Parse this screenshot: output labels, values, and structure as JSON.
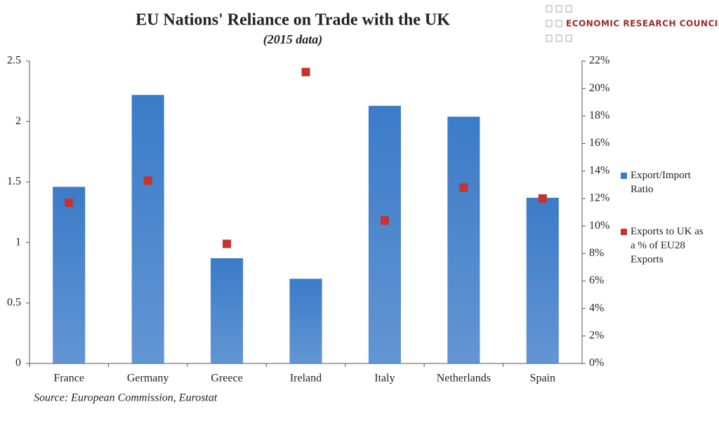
{
  "logo": "ECONOMIC RESEARCH COUNCIL",
  "chart_data": {
    "type": "bar",
    "title": "EU Nations' Reliance on Trade with the UK",
    "subtitle": "(2015 data)",
    "source": "Source: European Commission, Eurostat",
    "categories": [
      "France",
      "Germany",
      "Greece",
      "Ireland",
      "Italy",
      "Netherlands",
      "Spain"
    ],
    "series": [
      {
        "name": "Export/Import Ratio",
        "color": "#3b7bc8",
        "values": [
          1.46,
          2.22,
          0.87,
          0.7,
          2.13,
          2.04,
          1.37
        ]
      },
      {
        "name": "Exports to UK as a % of EU28 Exports",
        "color": "#c8322e",
        "axis": "y2",
        "marker": "square",
        "values": [
          11.7,
          13.3,
          8.7,
          21.2,
          10.4,
          12.8,
          12.0
        ]
      }
    ],
    "ylim": [
      0,
      2.5
    ],
    "yticks": [
      0,
      0.5,
      1,
      1.5,
      2,
      2.5
    ],
    "y2lim": [
      0,
      22
    ],
    "y2ticks": [
      {
        "value": 0,
        "label": "0%"
      },
      {
        "value": 2,
        "label": "2%"
      },
      {
        "value": 4,
        "label": "4%"
      },
      {
        "value": 6,
        "label": "6%"
      },
      {
        "value": 8,
        "label": "8%"
      },
      {
        "value": 10,
        "label": "10%"
      },
      {
        "value": 12,
        "label": "12%"
      },
      {
        "value": 14,
        "label": "14%"
      },
      {
        "value": 16,
        "label": "16%"
      },
      {
        "value": 18,
        "label": "18%"
      },
      {
        "value": 20,
        "label": "20%"
      },
      {
        "value": 22,
        "label": "22%"
      }
    ],
    "legend": "right"
  }
}
